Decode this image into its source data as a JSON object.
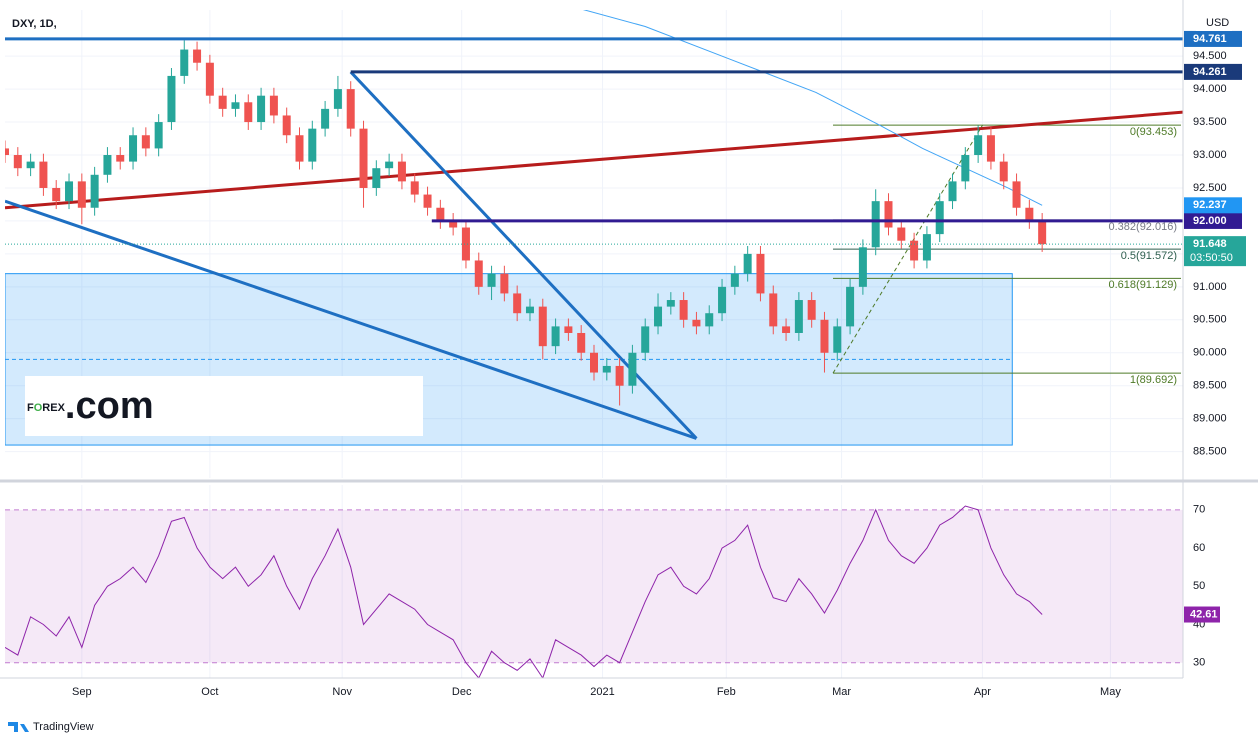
{
  "chart_data": [
    {
      "type": "candlestick",
      "title": "DXY, 1D,",
      "currency": "USD",
      "x": [
        0,
        3,
        6,
        9,
        12,
        15,
        18,
        21,
        24,
        27,
        30,
        33,
        36,
        39,
        42,
        45,
        48,
        51,
        54,
        57,
        60,
        63,
        66,
        69,
        72,
        75,
        78,
        81,
        84,
        87,
        90,
        93,
        96,
        99,
        102,
        105,
        108,
        111,
        114,
        117,
        120,
        123,
        126,
        129,
        132,
        135,
        138,
        141,
        144,
        147,
        150,
        153,
        156,
        159,
        162,
        165,
        168,
        171,
        174,
        177,
        180,
        183,
        186,
        189,
        192,
        195,
        198,
        201,
        204,
        207,
        210,
        213,
        216,
        219,
        222,
        225,
        228,
        231,
        234,
        237,
        240,
        243
      ],
      "open": [
        93.1,
        93.0,
        92.8,
        92.9,
        92.5,
        92.3,
        92.6,
        92.2,
        92.7,
        93.0,
        92.9,
        93.3,
        93.1,
        93.5,
        94.2,
        94.6,
        94.4,
        93.9,
        93.7,
        93.8,
        93.5,
        93.9,
        93.6,
        93.3,
        92.9,
        93.4,
        93.7,
        94.0,
        93.4,
        92.5,
        92.8,
        92.9,
        92.6,
        92.4,
        92.2,
        92.0,
        91.9,
        91.4,
        91.0,
        91.2,
        90.9,
        90.6,
        90.7,
        90.1,
        90.4,
        90.3,
        90.0,
        89.7,
        89.8,
        89.5,
        90.0,
        90.4,
        90.7,
        90.8,
        90.5,
        90.4,
        90.6,
        91.0,
        91.2,
        91.5,
        90.9,
        90.4,
        90.3,
        90.8,
        90.5,
        90.0,
        90.4,
        91.0,
        91.6,
        92.3,
        91.9,
        91.7,
        91.4,
        91.8,
        92.3,
        92.6,
        93.0,
        93.3,
        92.9,
        92.6,
        92.2,
        92.0
      ],
      "high": [
        93.22,
        93.12,
        93.02,
        93.02,
        92.62,
        92.72,
        92.72,
        92.82,
        93.12,
        93.12,
        93.42,
        93.42,
        93.62,
        94.32,
        94.74,
        94.72,
        94.52,
        94.02,
        93.92,
        93.92,
        94.02,
        94.02,
        93.72,
        93.42,
        93.52,
        93.82,
        94.2,
        94.12,
        93.52,
        92.92,
        93.02,
        93.02,
        92.72,
        92.52,
        92.32,
        92.12,
        92.02,
        91.52,
        91.32,
        91.32,
        91.02,
        90.82,
        90.82,
        90.52,
        90.52,
        90.42,
        90.12,
        89.92,
        89.92,
        90.12,
        90.52,
        90.9,
        90.92,
        90.92,
        90.62,
        90.72,
        91.12,
        91.32,
        91.62,
        91.62,
        91.02,
        90.52,
        90.92,
        90.92,
        90.62,
        90.52,
        91.12,
        91.72,
        92.48,
        92.42,
        92.02,
        91.82,
        91.92,
        92.42,
        92.72,
        93.12,
        93.45,
        93.42,
        93.02,
        92.72,
        92.32,
        92.12
      ],
      "low": [
        92.88,
        92.68,
        92.68,
        92.38,
        92.18,
        92.18,
        91.95,
        92.08,
        92.58,
        92.78,
        92.78,
        92.98,
        92.98,
        93.38,
        94.08,
        94.28,
        93.78,
        93.58,
        93.58,
        93.38,
        93.38,
        93.48,
        93.18,
        92.78,
        92.78,
        93.28,
        93.58,
        93.28,
        92.2,
        92.38,
        92.68,
        92.48,
        92.28,
        92.08,
        91.88,
        91.78,
        91.28,
        90.88,
        90.8,
        90.78,
        90.48,
        90.48,
        89.9,
        89.98,
        90.18,
        89.88,
        89.58,
        89.58,
        89.2,
        89.38,
        89.88,
        90.28,
        90.58,
        90.38,
        90.28,
        90.28,
        90.48,
        90.88,
        91.08,
        90.78,
        90.28,
        90.18,
        90.18,
        90.38,
        89.7,
        89.88,
        90.28,
        90.88,
        91.48,
        91.78,
        91.58,
        91.28,
        91.28,
        91.68,
        92.18,
        92.48,
        92.88,
        92.78,
        92.48,
        92.08,
        91.88,
        91.53
      ],
      "close": [
        93.0,
        92.8,
        92.9,
        92.5,
        92.3,
        92.6,
        92.2,
        92.7,
        93.0,
        92.9,
        93.3,
        93.1,
        93.5,
        94.2,
        94.6,
        94.4,
        93.9,
        93.7,
        93.8,
        93.5,
        93.9,
        93.6,
        93.3,
        92.9,
        93.4,
        93.7,
        94.0,
        93.4,
        92.5,
        92.8,
        92.9,
        92.6,
        92.4,
        92.2,
        92.0,
        91.9,
        91.4,
        91.0,
        91.2,
        90.9,
        90.6,
        90.7,
        90.1,
        90.4,
        90.3,
        90.0,
        89.7,
        89.8,
        89.5,
        90.0,
        90.4,
        90.7,
        90.8,
        90.5,
        90.4,
        90.6,
        91.0,
        91.2,
        91.5,
        90.9,
        90.4,
        90.3,
        90.8,
        90.5,
        90.0,
        90.4,
        91.0,
        91.6,
        92.3,
        91.9,
        91.7,
        91.4,
        91.8,
        92.3,
        92.6,
        93.0,
        93.3,
        92.9,
        92.6,
        92.2,
        92.0,
        91.648
      ],
      "up_color": "#26a69a",
      "down_color": "#ef5350",
      "countdown": "03:50:50",
      "xlim": [
        0,
        276
      ],
      "ylim": [
        88.1,
        95.2
      ],
      "yticks": [
        {
          "value": 88.5,
          "label": "88.500"
        },
        {
          "value": 89,
          "label": "89.000"
        },
        {
          "value": 89.5,
          "label": "89.500"
        },
        {
          "value": 90,
          "label": "90.000"
        },
        {
          "value": 90.5,
          "label": "90.500"
        },
        {
          "value": 91,
          "label": "91.000"
        },
        {
          "value": 91.5,
          "label": "91.500"
        },
        {
          "value": 92,
          "label": "92.000"
        },
        {
          "value": 92.5,
          "label": "92.500"
        },
        {
          "value": 93,
          "label": "93.000"
        },
        {
          "value": 93.5,
          "label": "93.500"
        },
        {
          "value": 94,
          "label": "94.000"
        },
        {
          "value": 94.5,
          "label": "94.500"
        }
      ],
      "xticks": [
        {
          "value": 18,
          "label": "Sep"
        },
        {
          "value": 48,
          "label": "Oct"
        },
        {
          "value": 79,
          "label": "Nov"
        },
        {
          "value": 107,
          "label": "Dec"
        },
        {
          "value": 140,
          "label": "2021"
        },
        {
          "value": 169,
          "label": "Feb"
        },
        {
          "value": 196,
          "label": "Mar"
        },
        {
          "value": 229,
          "label": "Apr"
        },
        {
          "value": 259,
          "label": "May"
        }
      ],
      "grid": true,
      "moving_average": {
        "x": [
          133,
          150,
          170,
          190,
          205,
          215,
          225,
          235,
          243
        ],
        "values": [
          95.25,
          94.95,
          94.45,
          93.95,
          93.45,
          93.1,
          92.8,
          92.5,
          92.237
        ],
        "color": "#42a5f5"
      },
      "levels": [
        {
          "value": 94.761,
          "start": 0,
          "color": "#1e6fc2"
        },
        {
          "value": 94.261,
          "start": 81,
          "color": "#1a3a7a"
        },
        {
          "value": 92,
          "label": "92.000",
          "start": 100,
          "color": "#311b92"
        }
      ],
      "fibonacci": {
        "start": 194,
        "end": 276,
        "levels": [
          {
            "price": 93.453,
            "label": "0(93.453)",
            "color": "#4e7a27"
          },
          {
            "price": 92.016,
            "label": "0.382(92.016)",
            "color": "#787b86"
          },
          {
            "price": 91.572,
            "label": "0.5(91.572)",
            "color": "#2e5e4e"
          },
          {
            "price": 91.129,
            "label": "0.618(91.129)",
            "color": "#4e7a27"
          },
          {
            "price": 89.692,
            "label": "1(89.692)",
            "color": "#4e7a27"
          }
        ]
      },
      "trendlines": [
        {
          "x": [
            0,
            276
          ],
          "y": [
            92.2,
            93.65
          ],
          "color": "#b71c1c",
          "width": 3
        },
        {
          "x": [
            0,
            162
          ],
          "y": [
            92.3,
            88.7
          ],
          "color": "#1e6fc2",
          "width": 3
        },
        {
          "x": [
            81,
            162
          ],
          "y": [
            94.26,
            88.7
          ],
          "color": "#1e6fc2",
          "width": 3
        },
        {
          "x": [
            194,
            229
          ],
          "y": [
            89.69,
            93.45
          ],
          "color": "#4e7a27",
          "width": 1,
          "dashed": true
        }
      ],
      "box": {
        "x": [
          0,
          236
        ],
        "y": [
          88.6,
          91.2
        ],
        "mid": 89.9,
        "color": "#2196f3"
      }
    },
    {
      "type": "line",
      "x": [
        0,
        3,
        6,
        9,
        12,
        15,
        18,
        21,
        24,
        27,
        30,
        33,
        36,
        39,
        42,
        45,
        48,
        51,
        54,
        57,
        60,
        63,
        66,
        69,
        72,
        75,
        78,
        81,
        84,
        87,
        90,
        93,
        96,
        99,
        102,
        105,
        108,
        111,
        114,
        117,
        120,
        123,
        126,
        129,
        132,
        135,
        138,
        141,
        144,
        147,
        150,
        153,
        156,
        159,
        162,
        165,
        168,
        171,
        174,
        177,
        180,
        183,
        186,
        189,
        192,
        195,
        198,
        201,
        204,
        207,
        210,
        213,
        216,
        219,
        222,
        225,
        228,
        231,
        234,
        237,
        240,
        243
      ],
      "values": [
        34,
        32,
        42,
        40,
        37,
        42,
        34,
        45,
        50,
        52,
        55,
        51,
        58,
        67,
        68,
        60,
        55,
        52,
        55,
        50,
        53,
        58,
        50,
        44,
        52,
        58,
        65,
        55,
        40,
        44,
        48,
        46,
        44,
        40,
        38,
        36,
        30,
        26,
        33,
        30,
        28,
        31,
        26,
        36,
        34,
        32,
        29,
        32,
        30,
        38,
        46,
        53,
        55,
        50,
        48,
        52,
        60,
        62,
        66,
        55,
        47,
        46,
        52,
        48,
        43,
        49,
        56,
        62,
        70,
        62,
        58,
        56,
        60,
        66,
        68,
        71,
        70,
        60,
        53,
        48,
        46,
        42.61
      ],
      "color": "#8e24aa",
      "ylim": [
        26,
        76.5
      ],
      "yticks": [
        30,
        40,
        50,
        60,
        70
      ],
      "band": [
        30,
        70
      ]
    }
  ],
  "logo": {
    "parts": [
      "F",
      "O",
      "REX",
      ".com"
    ]
  },
  "footer": {
    "brand": "TradingView"
  }
}
